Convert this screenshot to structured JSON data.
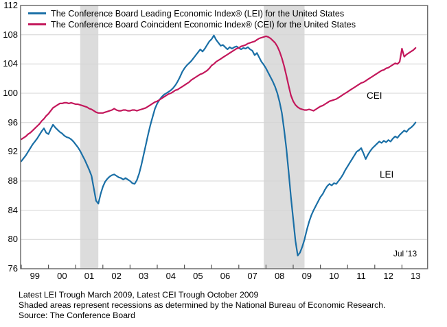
{
  "colors": {
    "lei_blue": "#1a6fa6",
    "cei_red": "#c3175b",
    "band": "#dcdcdc",
    "grid": "#d4d4d4",
    "border": "#6e6e6e",
    "tick": "#555555"
  },
  "legend": [
    {
      "label": "The Conference Board Leading Economic Index® (LEI) for the United States",
      "color": "#1a6fa6"
    },
    {
      "label": "The Conference Board Coincident Economic Index® (CEI) for the United States",
      "color": "#c3175b"
    }
  ],
  "annotations": {
    "cei": "CEI",
    "lei": "LEI",
    "last_point": "Jul '13"
  },
  "footer": {
    "line1": "Latest LEI Trough March 2009, Latest CEI Trough October 2009",
    "line2": "Shaded areas represent recessions as determined by the National Bureau of Economic Research.",
    "line3": "Source: The Conference Board"
  },
  "chart_data": {
    "type": "line",
    "title": "",
    "frequency": "monthly",
    "x_start": "1999-01",
    "x_end": "2013-07",
    "x_tick_labels": [
      "99",
      "00",
      "01",
      "02",
      "03",
      "04",
      "05",
      "06",
      "07",
      "08",
      "09",
      "10",
      "11",
      "12",
      "13"
    ],
    "y_ticks": [
      76,
      80,
      84,
      88,
      92,
      96,
      100,
      104,
      108,
      112
    ],
    "ylim": [
      76,
      112
    ],
    "grid": "horizontal-only",
    "legend_position": "top-left-inside",
    "recessions": [
      {
        "start": "2001-03",
        "end": "2001-11"
      },
      {
        "start": "2007-12",
        "end": "2009-06"
      }
    ],
    "series": [
      {
        "name": "The Conference Board Leading Economic Index® (LEI) for the United States",
        "short_name": "LEI",
        "color": "#1a6fa6",
        "values": [
          90.7,
          91.1,
          91.5,
          92.0,
          92.5,
          93.0,
          93.4,
          93.8,
          94.3,
          94.8,
          95.2,
          94.6,
          94.4,
          95.1,
          95.7,
          95.3,
          95.0,
          94.7,
          94.5,
          94.2,
          94.0,
          93.9,
          93.7,
          93.4,
          93.0,
          92.6,
          92.1,
          91.5,
          90.9,
          90.2,
          89.5,
          88.7,
          87.0,
          85.3,
          84.9,
          86.2,
          87.2,
          87.9,
          88.3,
          88.6,
          88.8,
          88.9,
          88.7,
          88.5,
          88.4,
          88.2,
          88.4,
          88.2,
          88.0,
          87.7,
          87.6,
          88.1,
          89.0,
          90.2,
          91.6,
          93.0,
          94.4,
          95.7,
          96.8,
          97.9,
          98.6,
          99.1,
          99.5,
          99.8,
          100.0,
          100.2,
          100.4,
          100.7,
          101.1,
          101.6,
          102.2,
          102.9,
          103.4,
          103.8,
          104.1,
          104.4,
          104.8,
          105.2,
          105.6,
          106.0,
          105.7,
          106.1,
          106.6,
          107.1,
          107.4,
          107.9,
          107.3,
          106.9,
          106.5,
          106.6,
          106.3,
          106.0,
          106.3,
          106.1,
          106.3,
          106.4,
          106.2,
          106.0,
          106.2,
          106.1,
          106.3,
          106.0,
          105.8,
          105.2,
          105.5,
          104.9,
          104.3,
          103.9,
          103.4,
          102.8,
          102.2,
          101.6,
          100.9,
          100.0,
          98.8,
          97.3,
          95.0,
          92.4,
          89.2,
          85.8,
          82.8,
          79.8,
          77.8,
          78.2,
          79.0,
          80.0,
          81.3,
          82.4,
          83.3,
          84.0,
          84.6,
          85.2,
          85.8,
          86.2,
          86.8,
          87.3,
          87.6,
          87.4,
          87.7,
          87.6,
          88.0,
          88.4,
          88.9,
          89.5,
          90.0,
          90.5,
          91.0,
          91.5,
          92.0,
          92.2,
          92.5,
          91.8,
          91.0,
          91.6,
          92.1,
          92.5,
          92.8,
          93.1,
          93.4,
          93.2,
          93.5,
          93.3,
          93.6,
          93.4,
          93.8,
          94.1,
          93.9,
          94.3,
          94.6,
          94.9,
          94.7,
          95.1,
          95.3,
          95.6,
          96.0
        ]
      },
      {
        "name": "The Conference Board Coincident Economic Index® (CEI) for the United States",
        "short_name": "CEI",
        "color": "#c3175b",
        "values": [
          93.7,
          93.9,
          94.1,
          94.4,
          94.6,
          94.9,
          95.2,
          95.5,
          95.8,
          96.2,
          96.5,
          96.9,
          97.2,
          97.6,
          98.0,
          98.2,
          98.4,
          98.6,
          98.6,
          98.7,
          98.7,
          98.6,
          98.7,
          98.6,
          98.5,
          98.5,
          98.4,
          98.3,
          98.2,
          98.1,
          97.9,
          97.8,
          97.6,
          97.4,
          97.3,
          97.3,
          97.3,
          97.4,
          97.5,
          97.6,
          97.7,
          97.9,
          97.7,
          97.6,
          97.6,
          97.7,
          97.7,
          97.6,
          97.6,
          97.7,
          97.7,
          97.6,
          97.7,
          97.8,
          97.9,
          98.0,
          98.2,
          98.4,
          98.6,
          98.8,
          98.9,
          99.1,
          99.3,
          99.5,
          99.7,
          99.9,
          100.0,
          100.2,
          100.4,
          100.5,
          100.7,
          100.9,
          101.1,
          101.3,
          101.5,
          101.8,
          102.0,
          102.2,
          102.4,
          102.6,
          102.7,
          102.9,
          103.1,
          103.4,
          103.8,
          104.0,
          104.3,
          104.5,
          104.7,
          104.9,
          105.1,
          105.3,
          105.5,
          105.7,
          105.9,
          106.1,
          106.2,
          106.4,
          106.5,
          106.6,
          106.8,
          106.9,
          107.0,
          107.1,
          107.3,
          107.5,
          107.6,
          107.7,
          107.8,
          107.7,
          107.5,
          107.2,
          106.9,
          106.4,
          105.7,
          104.8,
          103.7,
          102.4,
          101.0,
          99.7,
          98.9,
          98.4,
          98.1,
          97.9,
          97.8,
          97.7,
          97.7,
          97.8,
          97.7,
          97.6,
          97.8,
          98.0,
          98.2,
          98.3,
          98.5,
          98.7,
          98.9,
          99.0,
          99.1,
          99.2,
          99.4,
          99.6,
          99.8,
          100.0,
          100.2,
          100.4,
          100.6,
          100.8,
          101.0,
          101.2,
          101.4,
          101.5,
          101.7,
          101.9,
          102.1,
          102.3,
          102.5,
          102.7,
          102.9,
          103.1,
          103.2,
          103.4,
          103.5,
          103.7,
          103.9,
          104.1,
          104.0,
          104.3,
          106.1,
          105.0,
          105.3,
          105.5,
          105.7,
          105.9,
          106.2
        ]
      }
    ]
  }
}
